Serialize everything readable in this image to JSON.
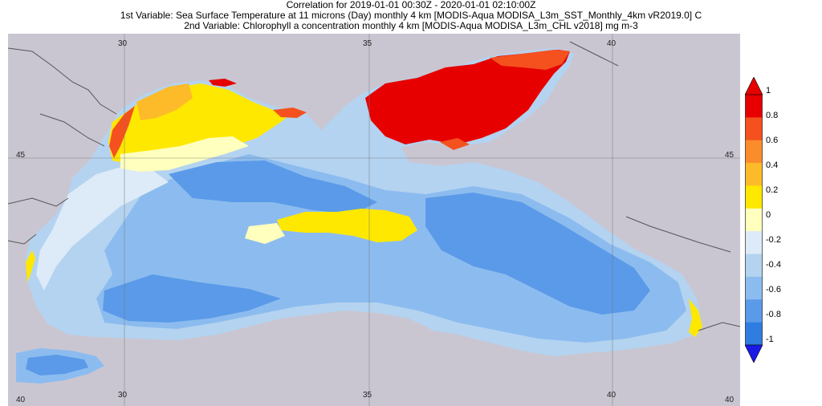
{
  "title": {
    "line1": "Correlation for 2019-01-01 00:30Z - 2020-01-01 02:10:00Z",
    "line2": "1st Variable: Sea Surface Temperature at 11 microns (Day) monthly 4 km [MODIS-Aqua MODISA_L3m_SST_Monthly_4km vR2019.0] C",
    "line3": "2nd Variable: Chlorophyll a concentration monthly 4 km [MODIS-Aqua MODISA_L3m_CHL v2018] mg m-3"
  },
  "map": {
    "lon_ticks_top": [
      "30",
      "35",
      "40"
    ],
    "lon_ticks_bottom": [
      "30",
      "35",
      "40"
    ],
    "lat_ticks_left": [
      "45",
      "40"
    ],
    "lat_ticks_right": [
      "45",
      "40"
    ],
    "land_color": "#c9c6d2",
    "border_color": "#555555"
  },
  "colorbar": {
    "labels": [
      "1",
      "0.8",
      "0.6",
      "0.4",
      "0.2",
      "0",
      "-0.2",
      "-0.4",
      "-0.6",
      "-0.8",
      "-1"
    ],
    "colors": [
      "#e60000",
      "#f4511e",
      "#fb8c2c",
      "#fdbb2a",
      "#ffe800",
      "#ffffbe",
      "#dcebf7",
      "#b4d3f0",
      "#8cbcef",
      "#5a9ae8",
      "#2f7de0"
    ],
    "over_color": "#e60000",
    "under_color": "#1a1ae6"
  }
}
